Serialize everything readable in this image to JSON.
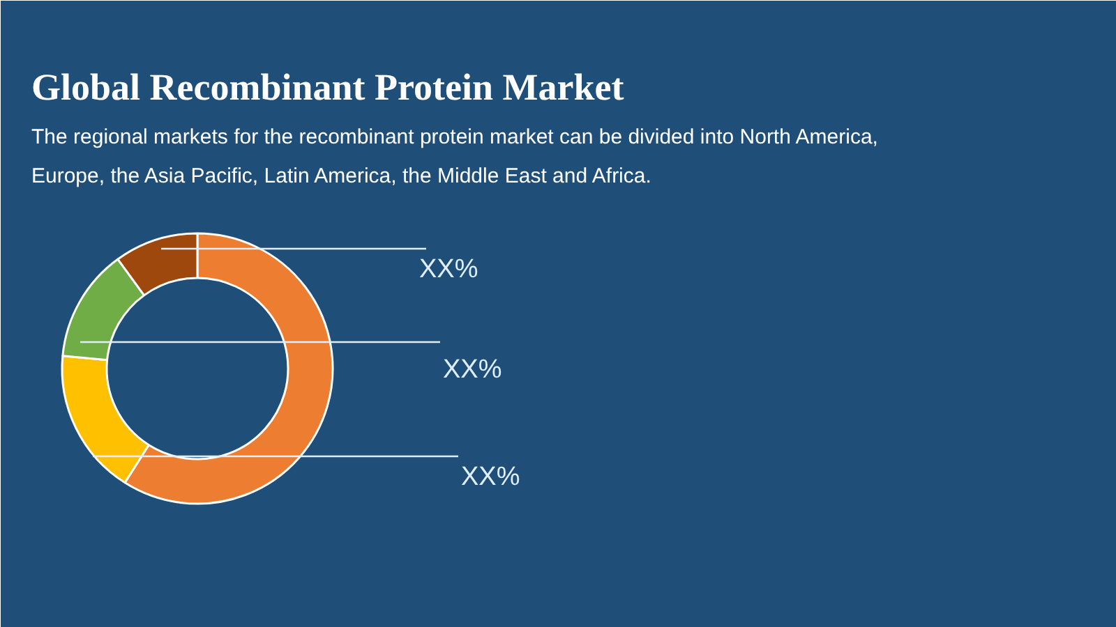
{
  "chart_data": {
    "type": "donut",
    "title": "Global Recombinant Protein Market",
    "subtitle": "The regional markets for the recombinant protein market can be divided into North America, Europe, the Asia Pacific, Latin America, the Middle East and Africa.",
    "categories": [
      null,
      null,
      null,
      null
    ],
    "values": [
      59,
      17.5,
      13.5,
      10
    ],
    "colors": [
      "#ed7d31",
      "#ffc000",
      "#70ad47",
      "#9e480e"
    ],
    "annotations": [
      "XX%",
      "XX%",
      "XX%"
    ]
  }
}
